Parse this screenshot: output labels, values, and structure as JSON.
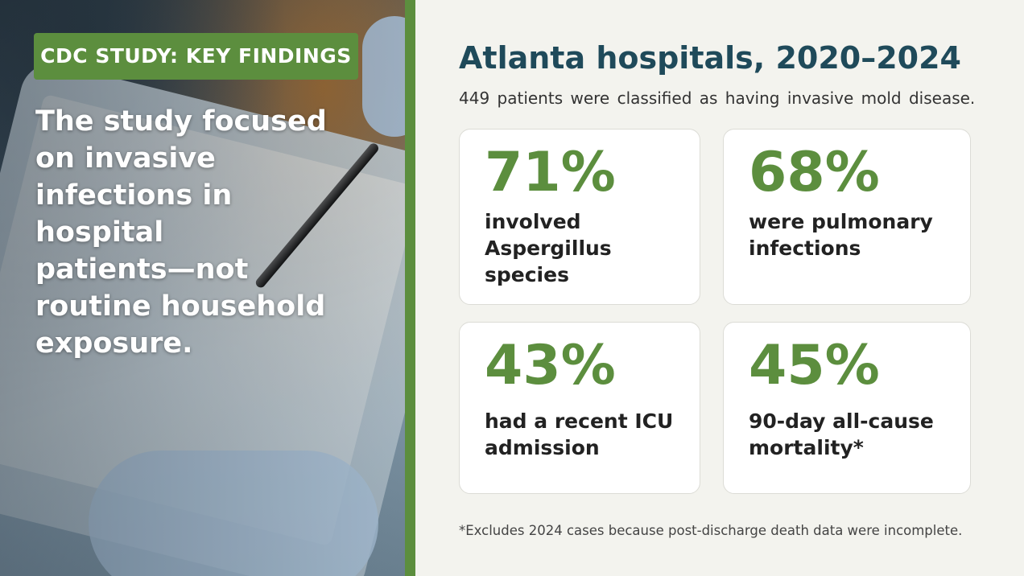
{
  "left": {
    "badge": "CDC STUDY: KEY FINDINGS",
    "lines": [
      "The study focused",
      "on invasive",
      "infections in",
      "hospital",
      "patients—not",
      "routine household",
      "exposure."
    ]
  },
  "header": {
    "title": "Atlanta hospitals, 2020–2024",
    "subtitle": "449 patients were classified as having invasive mold disease."
  },
  "stats": [
    {
      "value": "71%",
      "lines": [
        "involved",
        "Aspergillus",
        "species"
      ]
    },
    {
      "value": "68%",
      "lines": [
        "were pulmonary",
        "infections"
      ]
    },
    {
      "value": "43%",
      "lines": [
        "had a recent ICU",
        "admission"
      ]
    },
    {
      "value": "45%",
      "lines": [
        "90-day all-cause",
        "mortality*"
      ]
    }
  ],
  "footnote": "*Excludes 2024 cases because post-discharge death data were incomplete."
}
